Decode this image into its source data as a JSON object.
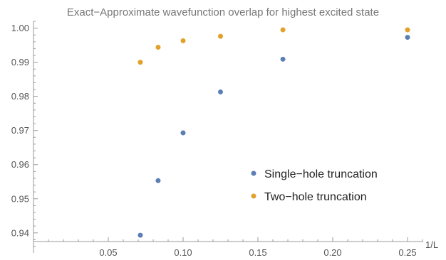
{
  "chart_data": {
    "type": "scatter",
    "title": "Exact−Approximate wavefunction overlap for highest excited state",
    "xlabel": "1/L",
    "ylabel": "",
    "xlim": [
      0,
      0.25
    ],
    "ylim": [
      0.936,
      1.002
    ],
    "x_ticks": [
      "0.05",
      "0.10",
      "0.15",
      "0.20",
      "0.25"
    ],
    "y_ticks": [
      "0.94",
      "0.95",
      "0.96",
      "0.97",
      "0.98",
      "0.99",
      "1.00"
    ],
    "grid": false,
    "legend_position": "center-right",
    "series": [
      {
        "name": "Single−hole truncation",
        "color": "#5b7fb5",
        "x": [
          0.0714,
          0.0833,
          0.1,
          0.125,
          0.1667,
          0.25
        ],
        "y": [
          0.9393,
          0.9553,
          0.9693,
          0.9813,
          0.9909,
          0.9973
        ]
      },
      {
        "name": "Two−hole truncation",
        "color": "#e2a12b",
        "x": [
          0.0714,
          0.0833,
          0.1,
          0.125,
          0.1667,
          0.25
        ],
        "y": [
          0.99,
          0.9944,
          0.9963,
          0.9976,
          0.9995,
          0.9995
        ]
      }
    ]
  }
}
